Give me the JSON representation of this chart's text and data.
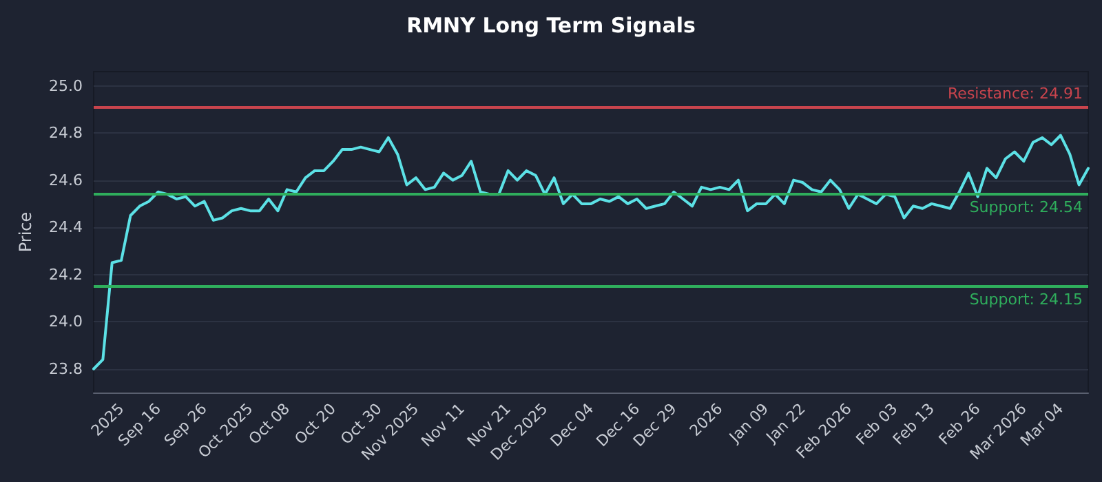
{
  "chart_data": {
    "type": "line",
    "title": "RMNY Long Term Signals",
    "ylabel": "Price",
    "categories": [
      null,
      null,
      null,
      "2025",
      null,
      null,
      null,
      "Sep 16",
      null,
      null,
      null,
      null,
      "Sep 26",
      null,
      null,
      null,
      null,
      "Oct 2025",
      null,
      null,
      null,
      "Oct 08",
      null,
      null,
      null,
      null,
      "Oct 20",
      null,
      null,
      null,
      null,
      "Oct 30",
      null,
      null,
      null,
      "Nov 2025",
      null,
      null,
      null,
      null,
      "Nov 11",
      null,
      null,
      null,
      null,
      "Nov 21",
      null,
      null,
      null,
      "Dec 2025",
      null,
      null,
      null,
      null,
      "Dec 04",
      null,
      null,
      null,
      null,
      "Dec 16",
      null,
      null,
      null,
      "Dec 29",
      null,
      null,
      null,
      null,
      "2026",
      null,
      null,
      null,
      null,
      "Jan 09",
      null,
      null,
      null,
      "Jan 22",
      null,
      null,
      null,
      null,
      "Feb 2026",
      null,
      null,
      null,
      null,
      "Feb 03",
      null,
      null,
      null,
      "Feb 13",
      null,
      null,
      null,
      null,
      "Feb 26",
      null,
      null,
      null,
      null,
      "Mar 2026",
      null,
      null,
      null,
      "Mar 04",
      null,
      null,
      null
    ],
    "series": [
      {
        "color": "#5ce1e6",
        "values": [
          23.8,
          23.84,
          24.25,
          24.26,
          24.45,
          24.49,
          24.51,
          24.55,
          24.54,
          24.52,
          24.53,
          24.49,
          24.51,
          24.43,
          24.44,
          24.47,
          24.48,
          24.47,
          24.47,
          24.52,
          24.47,
          24.56,
          24.55,
          24.61,
          24.64,
          24.64,
          24.68,
          24.73,
          24.73,
          24.74,
          24.73,
          24.72,
          24.78,
          24.71,
          24.58,
          24.61,
          24.56,
          24.57,
          24.63,
          24.6,
          24.62,
          24.68,
          24.55,
          24.54,
          24.54,
          24.64,
          24.6,
          24.64,
          24.62,
          24.54,
          24.61,
          24.5,
          24.54,
          24.5,
          24.5,
          24.52,
          24.51,
          24.53,
          24.5,
          24.52,
          24.48,
          24.49,
          24.5,
          24.55,
          24.52,
          24.49,
          24.57,
          24.56,
          24.57,
          24.56,
          24.6,
          24.47,
          24.5,
          24.5,
          24.54,
          24.5,
          24.6,
          24.59,
          24.56,
          24.55,
          24.6,
          24.56,
          24.48,
          24.54,
          24.52,
          24.5,
          24.54,
          24.53,
          24.44,
          24.49,
          24.48,
          24.5,
          24.49,
          24.48,
          24.55,
          24.63,
          24.53,
          24.65,
          24.61,
          24.69,
          24.72,
          24.68,
          24.76,
          24.78,
          24.75,
          24.79,
          24.71,
          24.58,
          24.65
        ]
      }
    ],
    "ylim": [
      23.7,
      25.06
    ],
    "yticks": [
      23.8,
      {
        "value": 24,
        "label": "24.0"
      },
      24.2,
      24.4,
      24.6,
      24.8,
      {
        "value": 25,
        "label": "25.0"
      }
    ],
    "grid": "y",
    "marker": "none",
    "line_style": "solid",
    "ref_lines": [
      {
        "axis": "y",
        "value": 24.91,
        "label": "Resistance: 24.91",
        "color": "#c9444d"
      },
      {
        "axis": "y",
        "value": 24.54,
        "label": "Support: 24.54",
        "color": "#2fae5c"
      },
      {
        "axis": "y",
        "value": 24.15,
        "label": "Support: 24.15",
        "color": "#2fae5c"
      }
    ]
  }
}
